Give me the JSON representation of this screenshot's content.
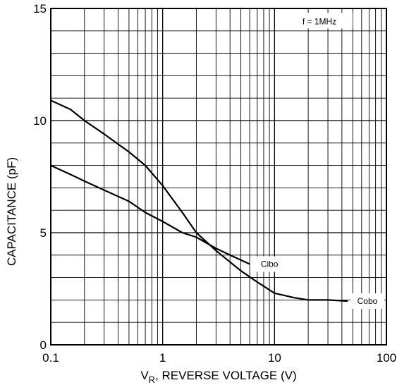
{
  "chart_data": {
    "type": "line",
    "xscale": "log",
    "xlim": [
      0.1,
      100
    ],
    "ylim": [
      0,
      15
    ],
    "grid": true,
    "xlabel_main": "V",
    "xlabel_sub": "R",
    "xlabel_rest": ", REVERSE VOLTAGE (V)",
    "ylabel": "CAPACITANCE (pF)",
    "x_ticks": [
      {
        "value": 0.1,
        "label": "0.1"
      },
      {
        "value": 1,
        "label": "1"
      },
      {
        "value": 10,
        "label": "10"
      },
      {
        "value": 100,
        "label": "100"
      }
    ],
    "y_ticks": [
      {
        "value": 0,
        "label": "0"
      },
      {
        "value": 5,
        "label": "5"
      },
      {
        "value": 10,
        "label": "10"
      },
      {
        "value": 15,
        "label": "15"
      }
    ],
    "annotation": "f = 1MHz",
    "series": [
      {
        "name": "Cibo",
        "color": "#000000",
        "x": [
          0.1,
          0.15,
          0.2,
          0.3,
          0.5,
          0.7,
          1.0,
          1.5,
          2.0,
          3.0,
          4.0,
          6.0
        ],
        "y": [
          8.0,
          7.6,
          7.3,
          6.9,
          6.4,
          5.9,
          5.5,
          5.0,
          4.8,
          4.3,
          4.0,
          3.6
        ]
      },
      {
        "name": "Cobo",
        "color": "#000000",
        "x": [
          0.1,
          0.15,
          0.2,
          0.3,
          0.5,
          0.7,
          1.0,
          1.5,
          2.0,
          3.0,
          5.0,
          7.0,
          10,
          15,
          20,
          30,
          45
        ],
        "y": [
          10.9,
          10.5,
          10.0,
          9.4,
          8.6,
          8.0,
          7.1,
          5.9,
          5.0,
          4.2,
          3.3,
          2.8,
          2.3,
          2.1,
          2.0,
          2.0,
          1.95
        ]
      }
    ],
    "labels": [
      {
        "series": "Cibo",
        "text": "Cibo"
      },
      {
        "series": "Cobo",
        "text": "Cobo"
      }
    ]
  }
}
